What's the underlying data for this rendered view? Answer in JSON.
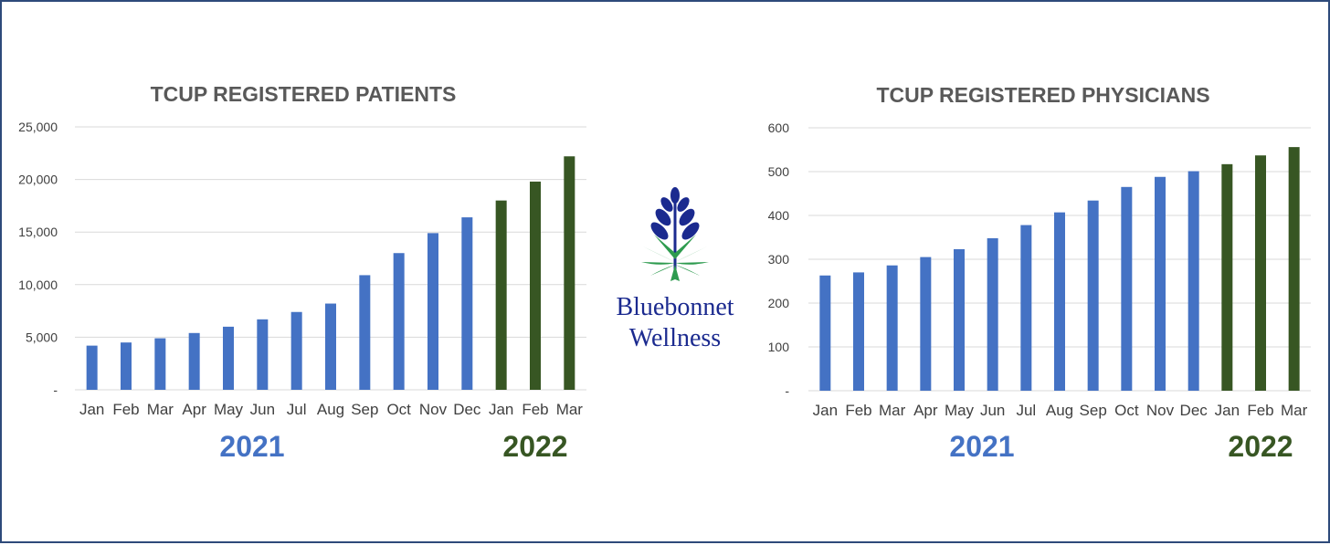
{
  "colors": {
    "blue": "#4472c4",
    "green": "#375623",
    "frame": "#2e4a7a",
    "logo_blue": "#1b2a8f",
    "logo_green": "#2e9b4f"
  },
  "logo": {
    "line1": "Bluebonnet",
    "line2": "Wellness",
    "icon": "bluebonnet-flower-icon"
  },
  "chart_data": [
    {
      "type": "bar",
      "title": "TCUP REGISTERED PATIENTS",
      "categories": [
        "Jan",
        "Feb",
        "Mar",
        "Apr",
        "May",
        "Jun",
        "Jul",
        "Aug",
        "Sep",
        "Oct",
        "Nov",
        "Dec",
        "Jan",
        "Feb",
        "Mar"
      ],
      "values": [
        4200,
        4500,
        4900,
        5400,
        6000,
        6700,
        7400,
        8200,
        10900,
        13000,
        14900,
        16400,
        18000,
        19800,
        22200
      ],
      "year_groups": [
        {
          "label": "2021",
          "start": 0,
          "end": 11
        },
        {
          "label": "2022",
          "start": 12,
          "end": 14
        }
      ],
      "ylim": [
        0,
        25000
      ],
      "yticks": [
        0,
        5000,
        10000,
        15000,
        20000,
        25000
      ],
      "ytick_labels": [
        "-",
        "5,000",
        "10,000",
        "15,000",
        "20,000",
        "25,000"
      ],
      "grid": true,
      "xlabel": "",
      "ylabel": ""
    },
    {
      "type": "bar",
      "title": "TCUP REGISTERED PHYSICIANS",
      "categories": [
        "Jan",
        "Feb",
        "Mar",
        "Apr",
        "May",
        "Jun",
        "Jul",
        "Aug",
        "Sep",
        "Oct",
        "Nov",
        "Dec",
        "Jan",
        "Feb",
        "Mar"
      ],
      "values": [
        263,
        270,
        286,
        305,
        323,
        348,
        378,
        407,
        434,
        465,
        488,
        501,
        517,
        537,
        556
      ],
      "year_groups": [
        {
          "label": "2021",
          "start": 0,
          "end": 11
        },
        {
          "label": "2022",
          "start": 12,
          "end": 14
        }
      ],
      "ylim": [
        0,
        600
      ],
      "yticks": [
        0,
        100,
        200,
        300,
        400,
        500,
        600
      ],
      "ytick_labels": [
        "-",
        "100",
        "200",
        "300",
        "400",
        "500",
        "600"
      ],
      "grid": true,
      "xlabel": "",
      "ylabel": ""
    }
  ]
}
